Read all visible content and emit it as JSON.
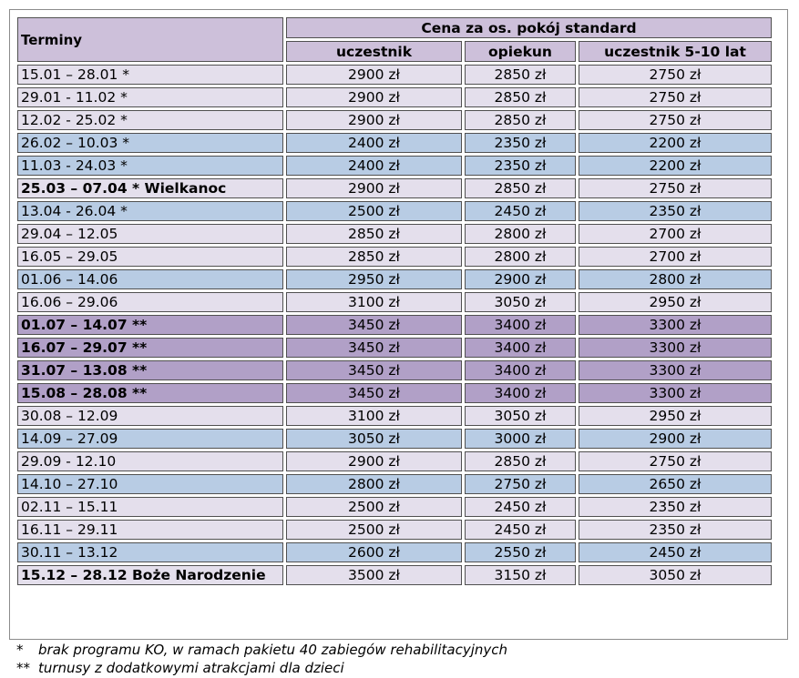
{
  "header": {
    "terminy": "Terminy",
    "group": "Cena za os. pokój standard",
    "columns": [
      "uczestnik",
      "opiekun",
      "uczestnik 5-10 lat"
    ]
  },
  "rows": [
    {
      "term": "15.01 – 28.01 *",
      "v": [
        "2900 zł",
        "2850 zł",
        "2750 zł"
      ],
      "style": "light",
      "bold": false
    },
    {
      "term": "29.01 - 11.02 *",
      "v": [
        "2900 zł",
        "2850 zł",
        "2750 zł"
      ],
      "style": "light",
      "bold": false
    },
    {
      "term": "12.02 - 25.02 *",
      "v": [
        "2900 zł",
        "2850 zł",
        "2750 zł"
      ],
      "style": "light",
      "bold": false
    },
    {
      "term": "26.02 – 10.03 *",
      "v": [
        "2400 zł",
        "2350 zł",
        "2200 zł"
      ],
      "style": "blue",
      "bold": false
    },
    {
      "term": "11.03 - 24.03 *",
      "v": [
        "2400 zł",
        "2350 zł",
        "2200 zł"
      ],
      "style": "blue",
      "bold": false
    },
    {
      "term": "25.03 – 07.04 * Wielkanoc",
      "v": [
        "2900 zł",
        "2850 zł",
        "2750 zł"
      ],
      "style": "light",
      "bold": true
    },
    {
      "term": "13.04 - 26.04 *",
      "v": [
        "2500 zł",
        "2450 zł",
        "2350 zł"
      ],
      "style": "blue",
      "bold": false
    },
    {
      "term": "29.04 – 12.05",
      "v": [
        "2850 zł",
        "2800 zł",
        "2700 zł"
      ],
      "style": "light",
      "bold": false
    },
    {
      "term": "16.05 – 29.05",
      "v": [
        "2850 zł",
        "2800 zł",
        "2700 zł"
      ],
      "style": "light",
      "bold": false
    },
    {
      "term": "01.06 – 14.06",
      "v": [
        "2950 zł",
        "2900 zł",
        "2800 zł"
      ],
      "style": "blue",
      "bold": false
    },
    {
      "term": "16.06 – 29.06",
      "v": [
        "3100 zł",
        "3050 zł",
        "2950 zł"
      ],
      "style": "light",
      "bold": false
    },
    {
      "term": "01.07 – 14.07 **",
      "v": [
        "3450 zł",
        "3400 zł",
        "3300 zł"
      ],
      "style": "purple",
      "bold": true
    },
    {
      "term": "16.07 – 29.07 **",
      "v": [
        "3450 zł",
        "3400 zł",
        "3300 zł"
      ],
      "style": "purple",
      "bold": true
    },
    {
      "term": "31.07 – 13.08 **",
      "v": [
        "3450 zł",
        "3400 zł",
        "3300 zł"
      ],
      "style": "purple",
      "bold": true
    },
    {
      "term": "15.08 – 28.08 **",
      "v": [
        "3450 zł",
        "3400 zł",
        "3300 zł"
      ],
      "style": "purple",
      "bold": true
    },
    {
      "term": "30.08 – 12.09",
      "v": [
        "3100 zł",
        "3050 zł",
        "2950 zł"
      ],
      "style": "light",
      "bold": false
    },
    {
      "term": "14.09 – 27.09",
      "v": [
        "3050 zł",
        "3000 zł",
        "2900 zł"
      ],
      "style": "blue",
      "bold": false
    },
    {
      "term": "29.09 - 12.10",
      "v": [
        "2900 zł",
        "2850 zł",
        "2750 zł"
      ],
      "style": "light",
      "bold": false
    },
    {
      "term": "14.10 – 27.10",
      "v": [
        "2800 zł",
        "2750 zł",
        "2650 zł"
      ],
      "style": "blue",
      "bold": false
    },
    {
      "term": "02.11 – 15.11",
      "v": [
        "2500 zł",
        "2450 zł",
        "2350 zł"
      ],
      "style": "light",
      "bold": false
    },
    {
      "term": "16.11 – 29.11",
      "v": [
        "2500 zł",
        "2450 zł",
        "2350 zł"
      ],
      "style": "light",
      "bold": false
    },
    {
      "term": "30.11 – 13.12",
      "v": [
        "2600 zł",
        "2550 zł",
        "2450 zł"
      ],
      "style": "blue",
      "bold": false
    },
    {
      "term": "15.12 – 28.12 Boże Narodzenie",
      "v": [
        "3500 zł",
        "3150 zł",
        "3050 zł"
      ],
      "style": "light",
      "bold": true
    }
  ],
  "notes": [
    {
      "mark": "*",
      "text": "brak programu KO, w ramach pakietu 40 zabiegów rehabilitacyjnych"
    },
    {
      "mark": "**",
      "text": "turnusy z dodatkowymi atrakcjami dla dzieci"
    }
  ],
  "colors": {
    "header": "#cdc0da",
    "light": "#e4dfec",
    "blue": "#b8cce4",
    "purple": "#b1a0c7"
  }
}
